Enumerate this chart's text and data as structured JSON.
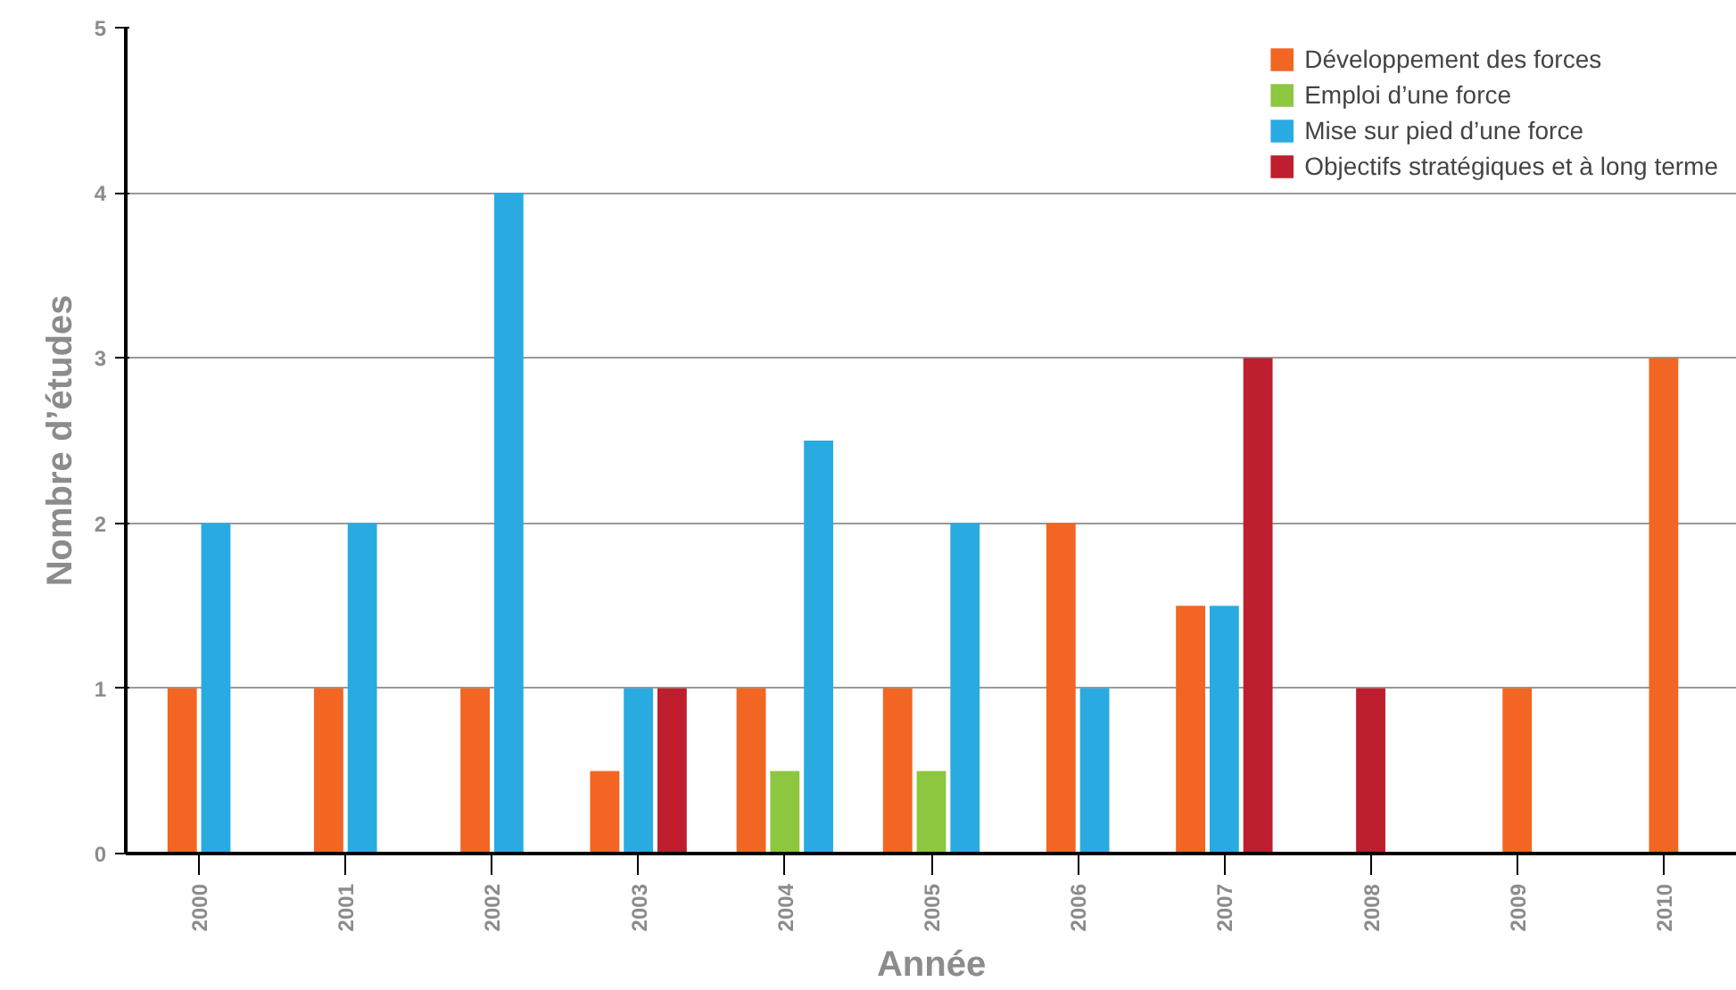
{
  "chart_data": {
    "type": "bar",
    "xlabel": "Année",
    "ylabel": "Nombre d’études",
    "categories": [
      "2000",
      "2001",
      "2002",
      "2003",
      "2004",
      "2005",
      "2006",
      "2007",
      "2008",
      "2009",
      "2010"
    ],
    "series": [
      {
        "name": "Développement des forces",
        "color": "#f26522",
        "values": [
          1,
          1,
          1,
          0.5,
          1,
          1,
          2,
          1.5,
          null,
          1,
          3
        ]
      },
      {
        "name": "Emploi d’une force",
        "color": "#8dc63f",
        "values": [
          null,
          null,
          null,
          null,
          0.5,
          0.5,
          null,
          null,
          null,
          null,
          null
        ]
      },
      {
        "name": "Mise sur pied d’une force",
        "color": "#29abe2",
        "values": [
          2,
          2,
          4,
          1,
          2.5,
          2,
          1,
          1.5,
          null,
          null,
          null
        ]
      },
      {
        "name": "Objectifs stratégiques et à long terme",
        "color": "#be1e2d",
        "values": [
          null,
          null,
          null,
          1,
          null,
          null,
          null,
          3,
          1,
          null,
          null
        ]
      }
    ],
    "ylim": [
      0,
      5
    ],
    "yticks": [
      0,
      1,
      2,
      3,
      4,
      5
    ],
    "grid": "y",
    "legend": "top right"
  }
}
